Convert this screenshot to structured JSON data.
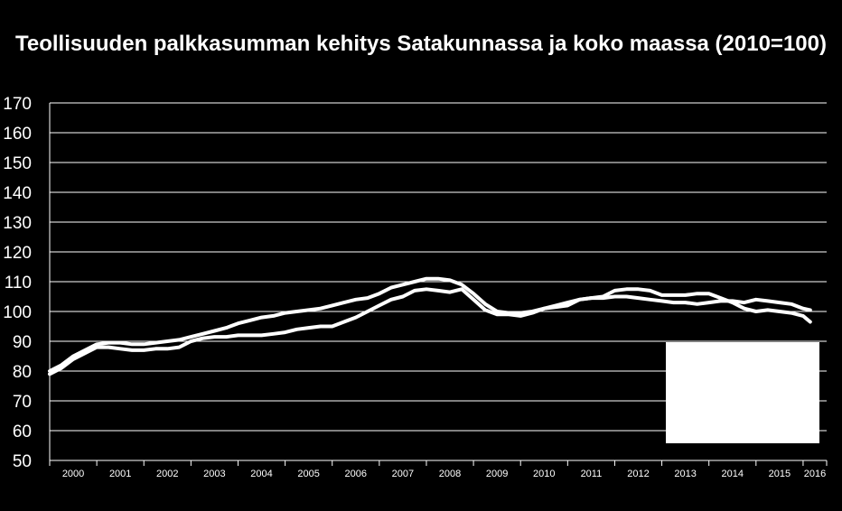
{
  "colors": {
    "background": "#000000",
    "foreground": "#ffffff",
    "legend_box": "#ffffff"
  },
  "chart_data": {
    "type": "line",
    "title": "Teollisuuden palkkasumman kehitys Satakunnassa ja koko maassa (2010=100)",
    "xlabel": "",
    "ylabel": "",
    "ylim": [
      50,
      170
    ],
    "yticks": [
      50,
      60,
      70,
      80,
      90,
      100,
      110,
      120,
      130,
      140,
      150,
      160,
      170
    ],
    "xlim": [
      2000,
      2016.5
    ],
    "xticks": [
      "2000",
      "2001",
      "2002",
      "2003",
      "2004",
      "2005",
      "2006",
      "2007",
      "2008",
      "2009",
      "2010",
      "2011",
      "2012",
      "2013",
      "2014",
      "2015",
      "2016"
    ],
    "grid": true,
    "legend": "bottom-right",
    "series": [
      {
        "x": [
          2000,
          2000.25,
          2000.5,
          2000.75,
          2001,
          2001.25,
          2001.5,
          2001.75,
          2002,
          2002.25,
          2002.5,
          2002.75,
          2003,
          2003.25,
          2003.5,
          2003.75,
          2004,
          2004.25,
          2004.5,
          2004.75,
          2005,
          2005.25,
          2005.5,
          2005.75,
          2006,
          2006.25,
          2006.5,
          2006.75,
          2007,
          2007.25,
          2007.5,
          2007.75,
          2008,
          2008.25,
          2008.5,
          2008.75,
          2009,
          2009.25,
          2009.5,
          2009.75,
          2010,
          2010.25,
          2010.5,
          2010.75,
          2011,
          2011.25,
          2011.5,
          2011.75,
          2012,
          2012.25,
          2012.5,
          2012.75,
          2013,
          2013.25,
          2013.5,
          2013.75,
          2014,
          2014.25,
          2014.5,
          2014.75,
          2015,
          2015.25,
          2015.5,
          2015.75,
          2016,
          2016.15
        ],
        "values": [
          80,
          82,
          85,
          87,
          89,
          89.5,
          89.5,
          89,
          89,
          89.5,
          90,
          90.5,
          91.5,
          92.5,
          93.5,
          94.5,
          96,
          97,
          98,
          98.5,
          99.5,
          100,
          100.5,
          101,
          102,
          103,
          104,
          104.5,
          106,
          108,
          109,
          110,
          111,
          111,
          110.5,
          109,
          106,
          102.5,
          100,
          99.5,
          99.5,
          100,
          101,
          102,
          103,
          104,
          104.5,
          104.5,
          105,
          105,
          104.5,
          104,
          103.5,
          103,
          103,
          102.5,
          103,
          103.5,
          103.5,
          103,
          104,
          103.5,
          103,
          102.5,
          101,
          100.5
        ]
      },
      {
        "x": [
          2000,
          2000.25,
          2000.5,
          2000.75,
          2001,
          2001.25,
          2001.5,
          2001.75,
          2002,
          2002.25,
          2002.5,
          2002.75,
          2003,
          2003.25,
          2003.5,
          2003.75,
          2004,
          2004.25,
          2004.5,
          2004.75,
          2005,
          2005.25,
          2005.5,
          2005.75,
          2006,
          2006.25,
          2006.5,
          2006.75,
          2007,
          2007.25,
          2007.5,
          2007.75,
          2008,
          2008.25,
          2008.5,
          2008.75,
          2009,
          2009.25,
          2009.5,
          2009.75,
          2010,
          2010.25,
          2010.5,
          2010.75,
          2011,
          2011.25,
          2011.5,
          2011.75,
          2012,
          2012.25,
          2012.5,
          2012.75,
          2013,
          2013.25,
          2013.5,
          2013.75,
          2014,
          2014.25,
          2014.5,
          2014.75,
          2015,
          2015.25,
          2015.5,
          2015.75,
          2016,
          2016.15
        ],
        "values": [
          79,
          81,
          84,
          86,
          88,
          88,
          87.5,
          87,
          87,
          87.5,
          87.5,
          88,
          90,
          91,
          91.5,
          91.5,
          92,
          92,
          92,
          92.5,
          93,
          94,
          94.5,
          95,
          95,
          96.5,
          98,
          100,
          102,
          104,
          105,
          107,
          107.5,
          107,
          106.5,
          107.5,
          104,
          100.5,
          99,
          99,
          98.5,
          99.5,
          101,
          101.5,
          102,
          104,
          104.5,
          105,
          107,
          107.5,
          107.5,
          107,
          105.5,
          105.5,
          105.5,
          106,
          106,
          104.5,
          103,
          101,
          100,
          100.5,
          100,
          99.5,
          98.5,
          96.5
        ]
      }
    ]
  }
}
